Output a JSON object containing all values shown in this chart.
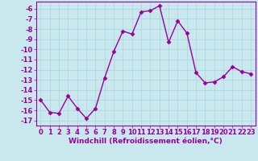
{
  "x": [
    0,
    1,
    2,
    3,
    4,
    5,
    6,
    7,
    8,
    9,
    10,
    11,
    12,
    13,
    14,
    15,
    16,
    17,
    18,
    19,
    20,
    21,
    22,
    23
  ],
  "y": [
    -15,
    -16.2,
    -16.3,
    -14.6,
    -15.8,
    -16.8,
    -15.8,
    -12.8,
    -10.2,
    -8.2,
    -8.5,
    -6.3,
    -6.2,
    -5.7,
    -9.3,
    -7.2,
    -8.4,
    -12.3,
    -13.3,
    -13.2,
    -12.7,
    -11.7,
    -12.2,
    -12.4
  ],
  "line_color": "#990099",
  "marker": "D",
  "markersize": 2.5,
  "linewidth": 1.0,
  "xlabel": "Windchill (Refroidissement éolien,°C)",
  "xlabel_fontsize": 6.5,
  "ylim": [
    -17.5,
    -5.3
  ],
  "xlim": [
    -0.5,
    23.5
  ],
  "yticks": [
    -6,
    -7,
    -8,
    -9,
    -10,
    -11,
    -12,
    -13,
    -14,
    -15,
    -16,
    -17
  ],
  "xticks": [
    0,
    1,
    2,
    3,
    4,
    5,
    6,
    7,
    8,
    9,
    10,
    11,
    12,
    13,
    14,
    15,
    16,
    17,
    18,
    19,
    20,
    21,
    22,
    23
  ],
  "background_color": "#c8e8ee",
  "grid_color": "#b0d8e0",
  "tick_color": "#990099",
  "tick_fontsize": 6.0,
  "grid_linewidth": 0.6,
  "spine_color": "#990099"
}
